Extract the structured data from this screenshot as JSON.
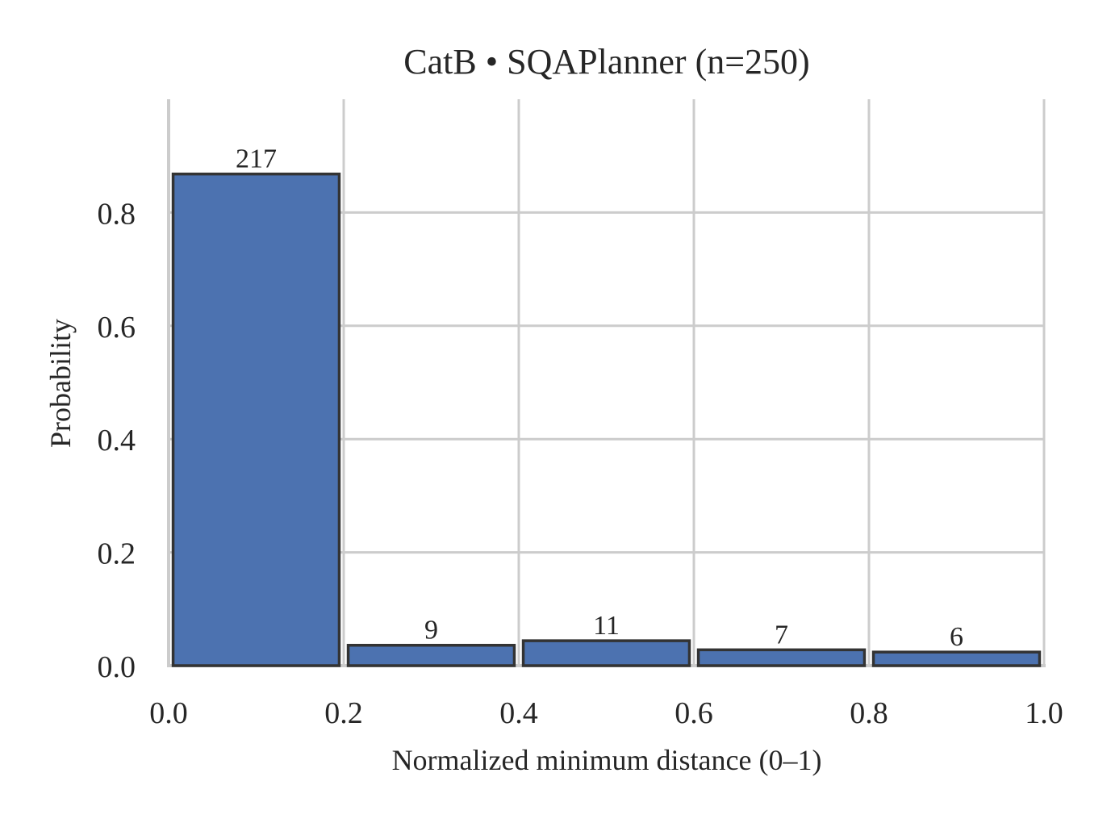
{
  "chart_data": {
    "type": "bar",
    "title": "CatB • SQAPlanner  (n=250)",
    "xlabel": "Normalized minimum distance (0–1)",
    "ylabel": "Probability",
    "bins": [
      {
        "x0": 0.0,
        "x1": 0.2,
        "count": 217,
        "probability": 0.868,
        "label": "217"
      },
      {
        "x0": 0.2,
        "x1": 0.4,
        "count": 9,
        "probability": 0.036,
        "label": "9"
      },
      {
        "x0": 0.4,
        "x1": 0.6,
        "count": 11,
        "probability": 0.044,
        "label": "11"
      },
      {
        "x0": 0.6,
        "x1": 0.8,
        "count": 7,
        "probability": 0.028,
        "label": "7"
      },
      {
        "x0": 0.8,
        "x1": 1.0,
        "count": 6,
        "probability": 0.024,
        "label": "6"
      }
    ],
    "xlim": [
      0.0,
      1.0
    ],
    "ylim": [
      0.0,
      1.0
    ],
    "xticks": [
      0.0,
      0.2,
      0.4,
      0.6,
      0.8,
      1.0
    ],
    "xtick_labels": [
      "0.0",
      "0.2",
      "0.4",
      "0.6",
      "0.8",
      "1.0"
    ],
    "yticks": [
      0.0,
      0.2,
      0.4,
      0.6,
      0.8
    ],
    "ytick_labels": [
      "0.0",
      "0.2",
      "0.4",
      "0.6",
      "0.8"
    ],
    "grid": true,
    "bar_color": "#4c72b0",
    "edge_color": "#333333"
  }
}
